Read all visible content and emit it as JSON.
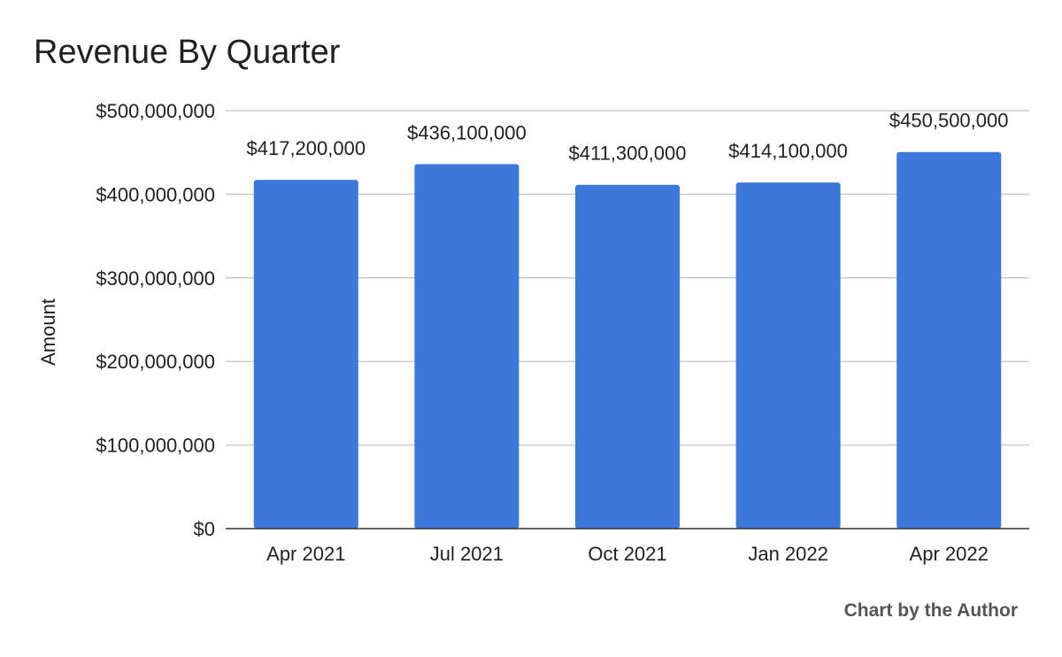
{
  "chart_data": {
    "type": "bar",
    "title": "Revenue By Quarter",
    "xlabel": "",
    "ylabel": "Amount",
    "categories": [
      "Apr 2021",
      "Jul 2021",
      "Oct 2021",
      "Jan 2022",
      "Apr 2022"
    ],
    "values": [
      417200000,
      436100000,
      411300000,
      414100000,
      450500000
    ],
    "data_labels": [
      "$417,200,000",
      "$436,100,000",
      "$411,300,000",
      "$414,100,000",
      "$450,500,000"
    ],
    "ylim": [
      0,
      500000000
    ],
    "y_ticks": [
      {
        "value": 0,
        "label": "$0"
      },
      {
        "value": 100000000,
        "label": "$100,000,000"
      },
      {
        "value": 200000000,
        "label": "$200,000,000"
      },
      {
        "value": 300000000,
        "label": "$300,000,000"
      },
      {
        "value": 400000000,
        "label": "$400,000,000"
      },
      {
        "value": 500000000,
        "label": "$500,000,000"
      }
    ],
    "grid": true,
    "legend": "none",
    "bar_color": "#3c78d8"
  },
  "credit": "Chart by the Author"
}
